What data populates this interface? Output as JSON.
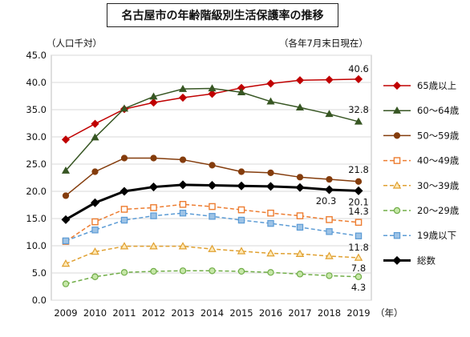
{
  "chart_data": {
    "type": "line",
    "title": "名古屋市の年齢階級別生活保護率の推移",
    "ylabel_note": "（人口千対）",
    "date_note": "（各年7月末日現在）",
    "x_unit": "（年）",
    "ylim": [
      0,
      45
    ],
    "yticks": [
      "0.0",
      "5.0",
      "10.0",
      "15.0",
      "20.0",
      "25.0",
      "30.0",
      "35.0",
      "40.0",
      "45.0"
    ],
    "categories": [
      "2009",
      "2010",
      "2011",
      "2012",
      "2013",
      "2014",
      "2015",
      "2016",
      "2017",
      "2018",
      "2019"
    ],
    "grid": true,
    "legend_position": "right",
    "series": [
      {
        "name": "65歳以上",
        "color": "#c00000",
        "marker": "diamond",
        "dash": false,
        "width": 1.5,
        "values": [
          29.5,
          32.4,
          35.1,
          36.3,
          37.2,
          37.9,
          39.0,
          39.8,
          40.4,
          40.5,
          40.6
        ]
      },
      {
        "name": "60～64歳",
        "color": "#375623",
        "marker": "triangle",
        "dash": false,
        "width": 1.5,
        "values": [
          23.8,
          29.9,
          35.2,
          37.4,
          38.8,
          38.9,
          38.2,
          36.5,
          35.4,
          34.2,
          32.8
        ]
      },
      {
        "name": "50～59歳",
        "color": "#843c0c",
        "marker": "circle",
        "dash": false,
        "width": 1.5,
        "values": [
          19.2,
          23.6,
          26.1,
          26.1,
          25.8,
          24.8,
          23.6,
          23.4,
          22.6,
          22.2,
          21.8
        ]
      },
      {
        "name": "40～49歳",
        "color": "#ed7d31",
        "marker": "square-open",
        "dash": true,
        "width": 1.5,
        "values": [
          10.8,
          14.4,
          16.7,
          17.0,
          17.6,
          17.2,
          16.6,
          16.0,
          15.5,
          14.8,
          14.3
        ]
      },
      {
        "name": "30～39歳",
        "color": "#e0a030",
        "marker": "triangle-open",
        "dash": true,
        "width": 1.5,
        "values": [
          6.7,
          8.9,
          9.9,
          9.9,
          9.9,
          9.4,
          9.0,
          8.6,
          8.5,
          8.1,
          7.8
        ]
      },
      {
        "name": "20～29歳",
        "color": "#70ad47",
        "marker": "circle-open",
        "dash": true,
        "width": 1.5,
        "values": [
          3.0,
          4.3,
          5.1,
          5.3,
          5.4,
          5.4,
          5.3,
          5.1,
          4.8,
          4.5,
          4.3
        ]
      },
      {
        "name": "19歳以下",
        "color": "#5b9bd5",
        "marker": "square-blue",
        "dash": true,
        "width": 1.5,
        "values": [
          10.9,
          12.9,
          14.7,
          15.5,
          16.0,
          15.4,
          14.7,
          14.1,
          13.4,
          12.6,
          11.8
        ]
      },
      {
        "name": "総数",
        "color": "#000000",
        "marker": "diamond",
        "dash": false,
        "width": 3,
        "values": [
          14.8,
          17.9,
          20.0,
          20.8,
          21.2,
          21.1,
          21.0,
          20.9,
          20.7,
          20.3,
          20.1
        ]
      }
    ],
    "data_labels": [
      {
        "series": "65歳以上",
        "index": 10,
        "text": "40.6"
      },
      {
        "series": "60～64歳",
        "index": 10,
        "text": "32.8"
      },
      {
        "series": "50～59歳",
        "index": 10,
        "text": "21.8"
      },
      {
        "series": "総数",
        "index": 9,
        "text": "20.3"
      },
      {
        "series": "総数",
        "index": 10,
        "text": "20.1"
      },
      {
        "series": "40～49歳",
        "index": 10,
        "text": "14.3"
      },
      {
        "series": "19歳以下",
        "index": 10,
        "text": "11.8"
      },
      {
        "series": "30～39歳",
        "index": 10,
        "text": "7.8"
      },
      {
        "series": "20～29歳",
        "index": 10,
        "text": "4.3"
      }
    ]
  }
}
